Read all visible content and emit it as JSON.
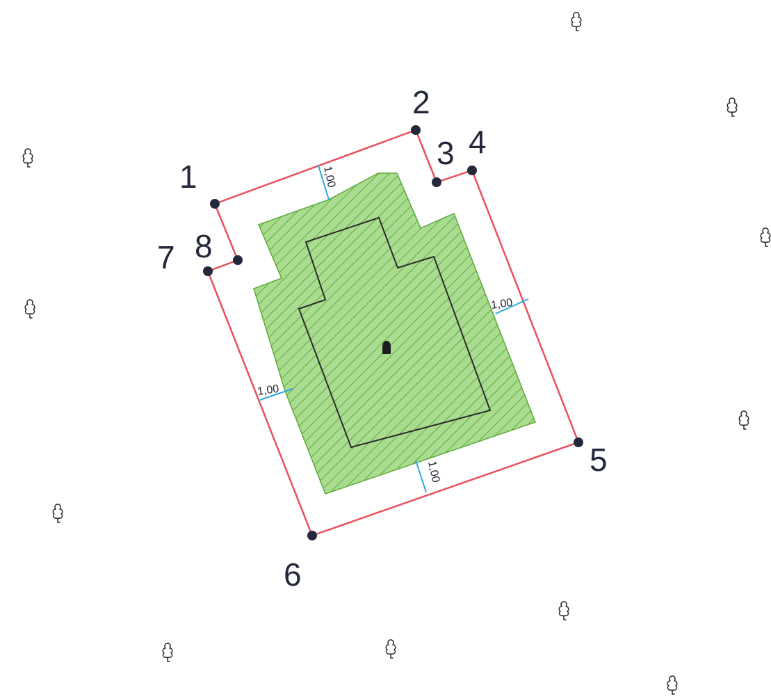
{
  "plan": {
    "boundary_color": "#e8505b",
    "footprint_fill": "#7ecb5a",
    "footprint_hatch": "#4d9a32",
    "building_outline_color": "#2b2b2b",
    "dimension_color": "#29a8e0",
    "point_color": "#23283a",
    "points": [
      {
        "label": "1"
      },
      {
        "label": "2"
      },
      {
        "label": "3"
      },
      {
        "label": "4"
      },
      {
        "label": "5"
      },
      {
        "label": "6"
      },
      {
        "label": "7"
      },
      {
        "label": "8"
      }
    ],
    "dimensions": [
      {
        "value": "1,00"
      },
      {
        "value": "1,00"
      },
      {
        "value": "1,00"
      },
      {
        "value": "1,00"
      }
    ],
    "tree_icon": "tree-symbol-icon",
    "tree_count": 11,
    "center_marker_icon": "building-marker-icon"
  }
}
